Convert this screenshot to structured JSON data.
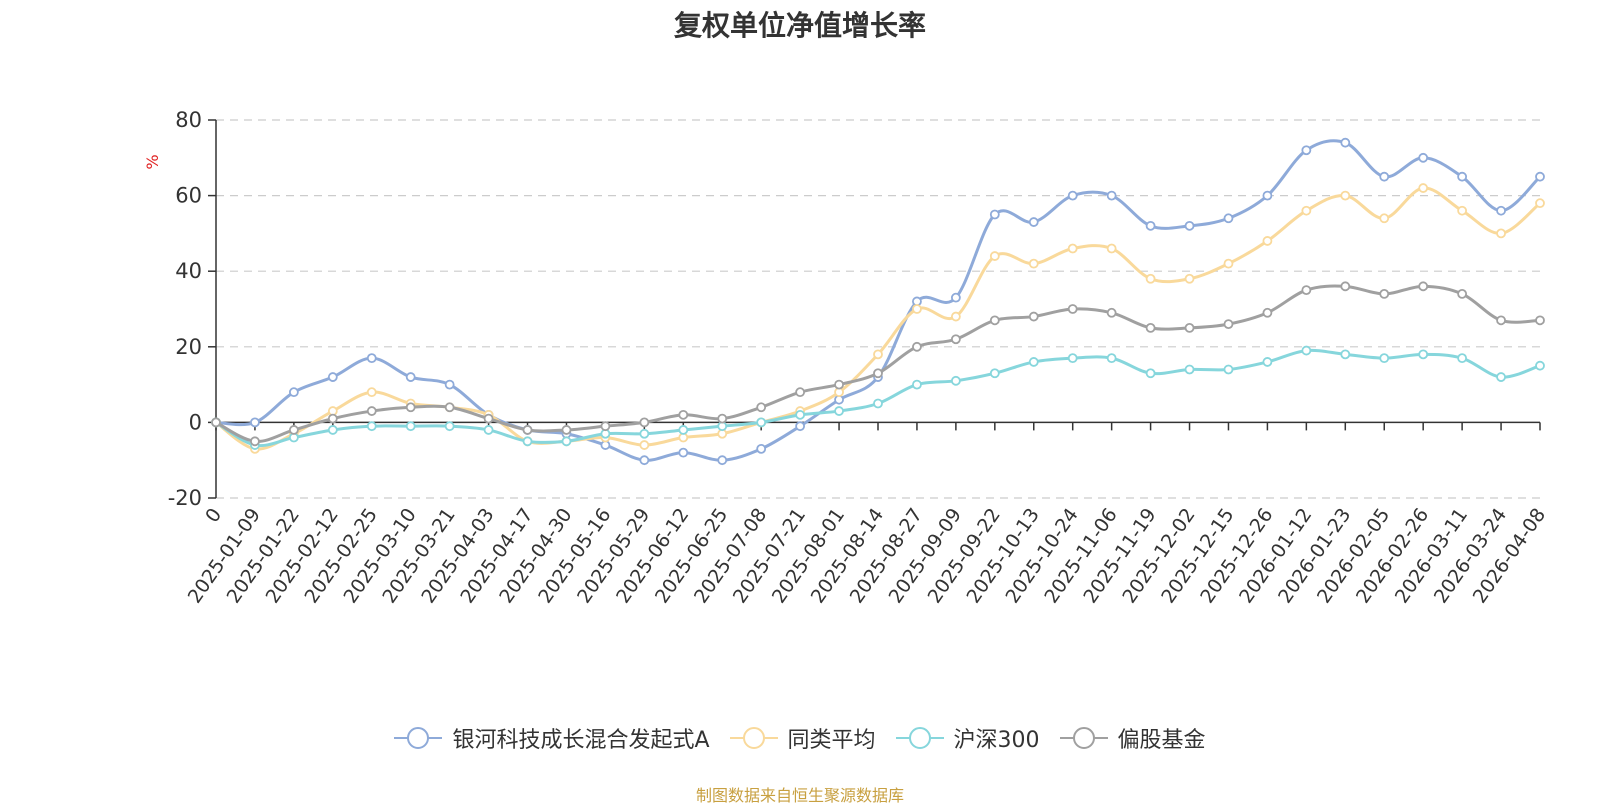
{
  "chart_data": {
    "type": "line",
    "title": "复权单位净值增长率",
    "ylabel": "%",
    "ylim": [
      -20,
      80
    ],
    "yticks": [
      -20,
      0,
      20,
      40,
      60,
      80
    ],
    "grid": true,
    "legend_position": "bottom",
    "x_tick_labels": [
      "0",
      "2025-01-09",
      "2025-01-22",
      "2025-02-12",
      "2025-02-25",
      "2025-03-10",
      "2025-03-21",
      "2025-04-03",
      "2025-04-17",
      "2025-04-30",
      "2025-05-16",
      "2025-05-29",
      "2025-06-12",
      "2025-06-25",
      "2025-07-08",
      "2025-07-21",
      "2025-08-01",
      "2025-08-14",
      "2025-08-27",
      "2025-09-09",
      "2025-09-22",
      "2025-10-13",
      "2025-10-24",
      "2025-11-06",
      "2025-11-19",
      "2025-12-02",
      "2025-12-15",
      "2025-12-26",
      "2026-01-12",
      "2026-01-23",
      "2026-02-05",
      "2026-02-26",
      "2026-03-11",
      "2026-03-24",
      "2026-04-08"
    ],
    "x": [
      "0",
      "2025-01-09",
      "2025-01-22",
      "2025-02-12",
      "2025-02-25",
      "2025-03-10",
      "2025-03-21",
      "2025-04-03",
      "2025-04-17",
      "2025-04-30",
      "2025-05-16",
      "2025-05-29",
      "2025-06-12",
      "2025-06-25",
      "2025-07-08",
      "2025-07-21",
      "2025-08-01",
      "2025-08-14",
      "2025-08-27",
      "2025-09-09",
      "2025-09-22",
      "2025-10-13",
      "2025-10-24",
      "2025-11-06",
      "2025-11-19",
      "2025-12-02",
      "2025-12-15",
      "2025-12-26",
      "2026-01-12",
      "2026-01-23",
      "2026-02-05",
      "2026-02-26",
      "2026-03-11",
      "2026-03-24",
      "2026-04-08"
    ],
    "series": [
      {
        "name": "银河科技成长混合发起式A",
        "color": "#8eaad9",
        "values": [
          0,
          0,
          8,
          12,
          17,
          12,
          10,
          2,
          -2,
          -3,
          -6,
          -10,
          -8,
          -10,
          -7,
          -1,
          6,
          12,
          32,
          33,
          55,
          53,
          60,
          60,
          52,
          52,
          54,
          60,
          72,
          74,
          65,
          70,
          65,
          56,
          65
        ]
      },
      {
        "name": "同类平均",
        "color": "#f9d99b",
        "values": [
          0,
          -7,
          -3,
          3,
          8,
          5,
          4,
          2,
          -5,
          -5,
          -4,
          -6,
          -4,
          -3,
          0,
          3,
          8,
          18,
          30,
          28,
          44,
          42,
          46,
          46,
          38,
          38,
          42,
          48,
          56,
          60,
          54,
          62,
          56,
          50,
          58
        ]
      },
      {
        "name": "沪深300",
        "color": "#86d6dc",
        "values": [
          0,
          -6,
          -4,
          -2,
          -1,
          -1,
          -1,
          -2,
          -5,
          -5,
          -3,
          -3,
          -2,
          -1,
          0,
          2,
          3,
          5,
          10,
          11,
          13,
          16,
          17,
          17,
          13,
          14,
          14,
          16,
          19,
          18,
          17,
          18,
          17,
          12,
          15
        ]
      },
      {
        "name": "偏股基金",
        "color": "#a0a0a0",
        "values": [
          0,
          -5,
          -2,
          1,
          3,
          4,
          4,
          1,
          -2,
          -2,
          -1,
          0,
          2,
          1,
          4,
          8,
          10,
          13,
          20,
          22,
          27,
          28,
          30,
          29,
          25,
          25,
          26,
          29,
          35,
          36,
          34,
          36,
          34,
          27,
          27
        ]
      }
    ]
  },
  "legend": {
    "items": [
      "银河科技成长混合发起式A",
      "同类平均",
      "沪深300",
      "偏股基金"
    ]
  },
  "footer": "制图数据来自恒生聚源数据库"
}
